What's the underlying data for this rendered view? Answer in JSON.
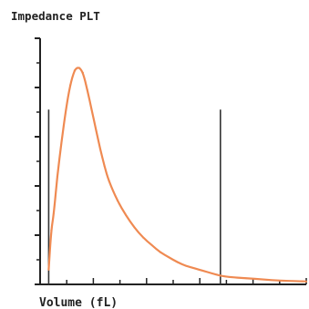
{
  "colors": {
    "background": "#ffffff",
    "axis": "#222222",
    "curve": "#ef8a52",
    "discriminator": "#333333"
  },
  "chart_data": {
    "type": "line",
    "title": "Impedance PLT",
    "xlabel": "Volume (fL)",
    "ylabel": "",
    "xlim": [
      0,
      31
    ],
    "ylim": [
      0,
      100
    ],
    "grid": false,
    "legend": "none",
    "discriminators": [
      1,
      21
    ],
    "series": [
      {
        "x": [
          1,
          1.3,
          1.6,
          2,
          2.5,
          3,
          3.5,
          4,
          4.3,
          4.6,
          5,
          5.5,
          6,
          6.5,
          7,
          7.5,
          8,
          9,
          10,
          11,
          12,
          13,
          14,
          15,
          16,
          17,
          18,
          19,
          20,
          21,
          22,
          24,
          26,
          28,
          30,
          31
        ],
        "y": [
          6,
          22,
          29,
          44,
          58,
          71,
          81,
          87,
          88,
          88,
          86,
          79,
          71,
          63,
          55,
          48,
          42,
          34,
          28,
          23,
          19,
          16,
          13,
          11,
          9,
          7.5,
          6.5,
          5.5,
          4.5,
          3.5,
          3,
          2.5,
          2,
          1.5,
          1.3,
          1.2
        ]
      }
    ]
  }
}
